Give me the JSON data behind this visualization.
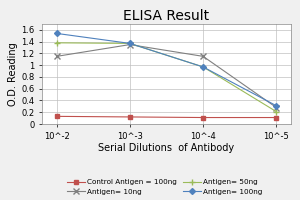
{
  "title": "ELISA Result",
  "xlabel": "Serial Dilutions  of Antibody",
  "ylabel": "O.D. Reading",
  "x_tick_labels": [
    "10^-2",
    "10^-3",
    "10^-4",
    "10^-5"
  ],
  "ylim": [
    0,
    1.7
  ],
  "yticks": [
    0.0,
    0.2,
    0.4,
    0.6,
    0.8,
    1.0,
    1.2,
    1.4,
    1.6
  ],
  "ytick_labels": [
    "0",
    "0.2",
    "0.4",
    "0.6",
    "0.8",
    "1",
    "1.2",
    "1.4",
    "1.6"
  ],
  "series": [
    {
      "label": "Control Antigen = 100ng",
      "color": "#c0504d",
      "marker": "s",
      "markersize": 3,
      "linewidth": 0.8,
      "values": [
        0.13,
        0.12,
        0.11,
        0.11
      ]
    },
    {
      "label": "Antigen= 10ng",
      "color": "#808080",
      "marker": "x",
      "markersize": 4,
      "linewidth": 0.8,
      "values": [
        1.15,
        1.35,
        1.15,
        0.28
      ]
    },
    {
      "label": "Antigen= 50ng",
      "color": "#9bbb59",
      "marker": "+",
      "markersize": 4,
      "linewidth": 0.8,
      "values": [
        1.38,
        1.37,
        0.97,
        0.21
      ]
    },
    {
      "label": "Antigen= 100ng",
      "color": "#4f81bd",
      "marker": "D",
      "markersize": 3,
      "linewidth": 0.8,
      "values": [
        1.54,
        1.37,
        0.97,
        0.31
      ]
    }
  ],
  "background_color": "#f0f0f0",
  "plot_bg_color": "#ffffff",
  "grid_color": "#c0c0c0",
  "title_fontsize": 10,
  "axis_label_fontsize": 7,
  "tick_fontsize": 6,
  "legend_fontsize": 5.2
}
